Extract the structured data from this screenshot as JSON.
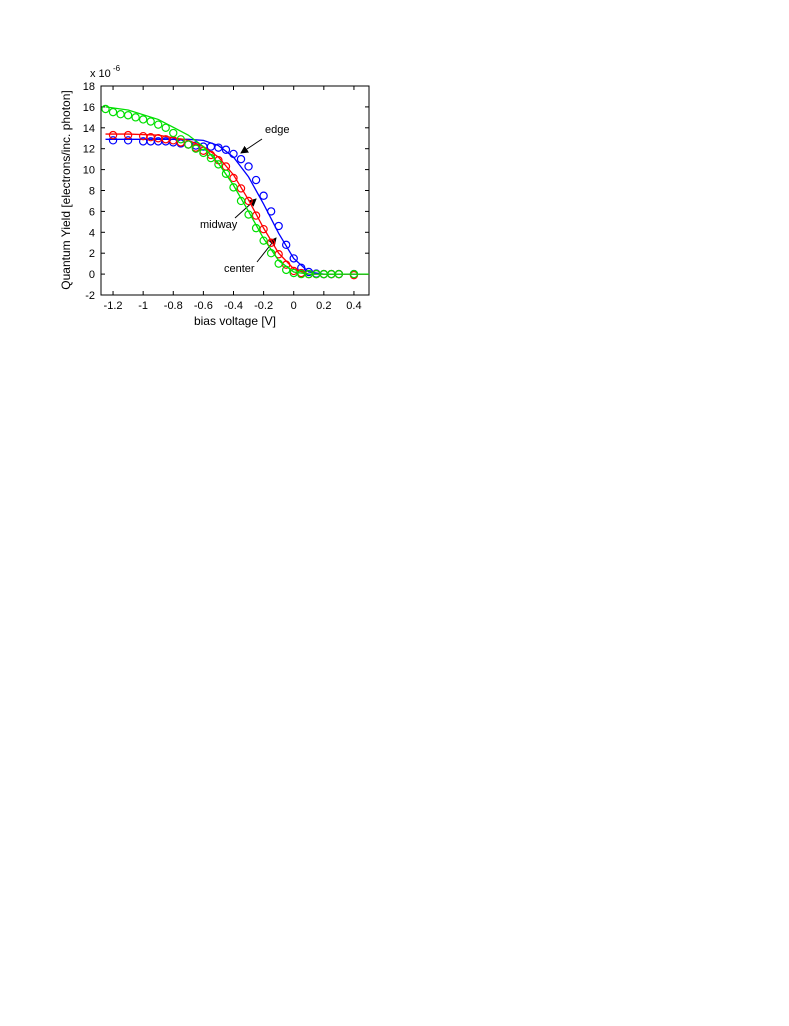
{
  "chart_data": {
    "type": "line-scatter",
    "y_multiplier": {
      "base": "x 10",
      "exponent": "-6"
    },
    "xlabel": "bias voltage [V]",
    "ylabel": "Quantum Yield [electrons/inc. photon]",
    "xlim": [
      -1.28,
      0.5
    ],
    "xticks": [
      -1.2,
      -1,
      -0.8,
      -0.6,
      -0.4,
      -0.2,
      0,
      0.2,
      0.4
    ],
    "ylim": [
      -2,
      18
    ],
    "yticks": [
      -2,
      0,
      2,
      4,
      6,
      8,
      10,
      12,
      14,
      16,
      18
    ],
    "grid": false,
    "fit_x": [
      -1.25,
      -1.1,
      -0.9,
      -0.7,
      -0.6,
      -0.5,
      -0.4,
      -0.3,
      -0.2,
      -0.1,
      0,
      0.1,
      0.2,
      0.3,
      0.5
    ],
    "series": [
      {
        "name": "edge",
        "color": "#0000ff",
        "x": [
          -1.2,
          -1.1,
          -1.0,
          -0.95,
          -0.9,
          -0.85,
          -0.8,
          -0.75,
          -0.7,
          -0.65,
          -0.6,
          -0.55,
          -0.5,
          -0.45,
          -0.4,
          -0.35,
          -0.3,
          -0.25,
          -0.2,
          -0.15,
          -0.1,
          -0.05,
          0,
          0.05,
          0.1,
          0.15,
          0.2,
          0.25,
          0.3,
          0.4
        ],
        "values": [
          12.8,
          12.8,
          12.7,
          12.7,
          12.7,
          12.7,
          12.6,
          12.5,
          12.4,
          12.3,
          12.2,
          12.2,
          12.1,
          11.9,
          11.5,
          11.0,
          10.3,
          9.0,
          7.5,
          6.0,
          4.6,
          2.8,
          1.5,
          0.6,
          0.2,
          0.05,
          0,
          0,
          0,
          0
        ],
        "fit": [
          12.9,
          12.9,
          12.9,
          12.9,
          12.8,
          12.3,
          11.2,
          9.3,
          6.7,
          3.9,
          1.5,
          0.2,
          0,
          0,
          0
        ]
      },
      {
        "name": "midway",
        "color": "#ff0000",
        "x": [
          -1.2,
          -1.1,
          -1.0,
          -0.95,
          -0.9,
          -0.85,
          -0.8,
          -0.75,
          -0.7,
          -0.65,
          -0.6,
          -0.55,
          -0.5,
          -0.45,
          -0.4,
          -0.35,
          -0.3,
          -0.25,
          -0.2,
          -0.15,
          -0.1,
          -0.05,
          0,
          0.05,
          0.1,
          0.15,
          0.2,
          0.25,
          0.3,
          0.4
        ],
        "values": [
          13.3,
          13.3,
          13.2,
          13.1,
          13.0,
          12.9,
          12.8,
          12.6,
          12.4,
          12.1,
          11.8,
          11.4,
          10.9,
          10.3,
          9.2,
          8.2,
          7.0,
          5.6,
          4.3,
          3.0,
          1.9,
          0.9,
          0.3,
          0.1,
          0,
          0,
          0,
          0,
          0,
          -0.1
        ],
        "fit": [
          13.4,
          13.4,
          13.3,
          12.8,
          12.2,
          11.2,
          9.5,
          7.1,
          4.4,
          2.0,
          0.5,
          0,
          0,
          0,
          0
        ]
      },
      {
        "name": "center",
        "color": "#00e000",
        "x": [
          -1.25,
          -1.2,
          -1.15,
          -1.1,
          -1.05,
          -1.0,
          -0.95,
          -0.9,
          -0.85,
          -0.8,
          -0.75,
          -0.7,
          -0.65,
          -0.6,
          -0.55,
          -0.5,
          -0.45,
          -0.4,
          -0.35,
          -0.3,
          -0.25,
          -0.2,
          -0.15,
          -0.1,
          -0.05,
          0,
          0.05,
          0.1,
          0.15,
          0.2,
          0.25,
          0.3,
          0.4
        ],
        "values": [
          15.8,
          15.5,
          15.3,
          15.2,
          15.0,
          14.8,
          14.6,
          14.3,
          14.0,
          13.5,
          12.9,
          12.4,
          12.0,
          11.6,
          11.1,
          10.5,
          9.6,
          8.3,
          7.0,
          5.7,
          4.4,
          3.2,
          2.0,
          1.0,
          0.4,
          0.1,
          0,
          0,
          0,
          0,
          0,
          0,
          0
        ],
        "fit": [
          16.0,
          15.7,
          14.8,
          13.3,
          12.2,
          10.6,
          8.5,
          6.0,
          3.4,
          1.3,
          0.2,
          0,
          0,
          0,
          0
        ]
      }
    ]
  }
}
